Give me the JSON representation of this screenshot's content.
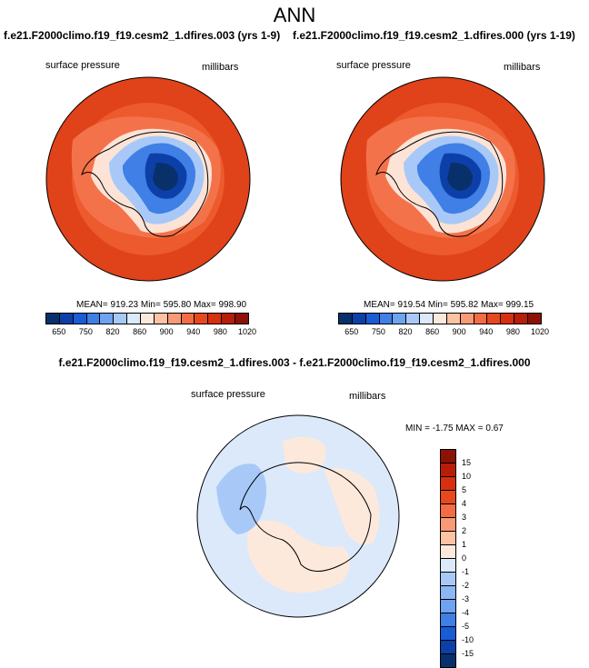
{
  "title": "ANN",
  "panel_left": {
    "subtitle": "f.e21.F2000climo.f19_f19.cesm2_1.dfires.003 (yrs 1-9)",
    "variable": "surface pressure",
    "units": "millibars",
    "stats": "MEAN= 919.23  Min= 595.80  Max= 998.90"
  },
  "panel_right": {
    "subtitle": "f.e21.F2000climo.f19_f19.cesm2_1.dfires.000 (yrs 1-19)",
    "variable": "surface pressure",
    "units": "millibars",
    "stats": "MEAN= 919.54  Min= 595.82  Max= 999.15"
  },
  "panel_diff": {
    "subtitle": "f.e21.F2000climo.f19_f19.cesm2_1.dfires.003 - f.e21.F2000climo.f19_f19.cesm2_1.dfires.000",
    "variable": "surface pressure",
    "units": "millibars",
    "stats": "MIN = -1.75 MAX =  0.67"
  },
  "colorbar_top": {
    "colors": [
      "#08306b",
      "#0d3fa8",
      "#1a5bd6",
      "#3f7fe6",
      "#6ea3f0",
      "#a8c9f7",
      "#dbe9fb",
      "#fde9dc",
      "#fcc2a3",
      "#f89a76",
      "#f36c45",
      "#e8481f",
      "#d6300f",
      "#b81c0a",
      "#8c1205"
    ],
    "tick_labels": [
      "650",
      "750",
      "820",
      "860",
      "900",
      "940",
      "980",
      "1020"
    ]
  },
  "colorbar_diff": {
    "colors": [
      "#8c1205",
      "#b81c0a",
      "#d6300f",
      "#e8481f",
      "#f36c45",
      "#f89a76",
      "#fcc2a3",
      "#fde9dc",
      "#dbe9fb",
      "#a8c9f7",
      "#8fb6f4",
      "#6ea3f0",
      "#3f7fe6",
      "#1a5bd6",
      "#0d3fa8",
      "#08306b"
    ],
    "tick_labels": [
      "15",
      "10",
      "5",
      "4",
      "3",
      "2",
      "1",
      "0",
      "-1",
      "-2",
      "-3",
      "-4",
      "-5",
      "-10",
      "-15"
    ]
  }
}
